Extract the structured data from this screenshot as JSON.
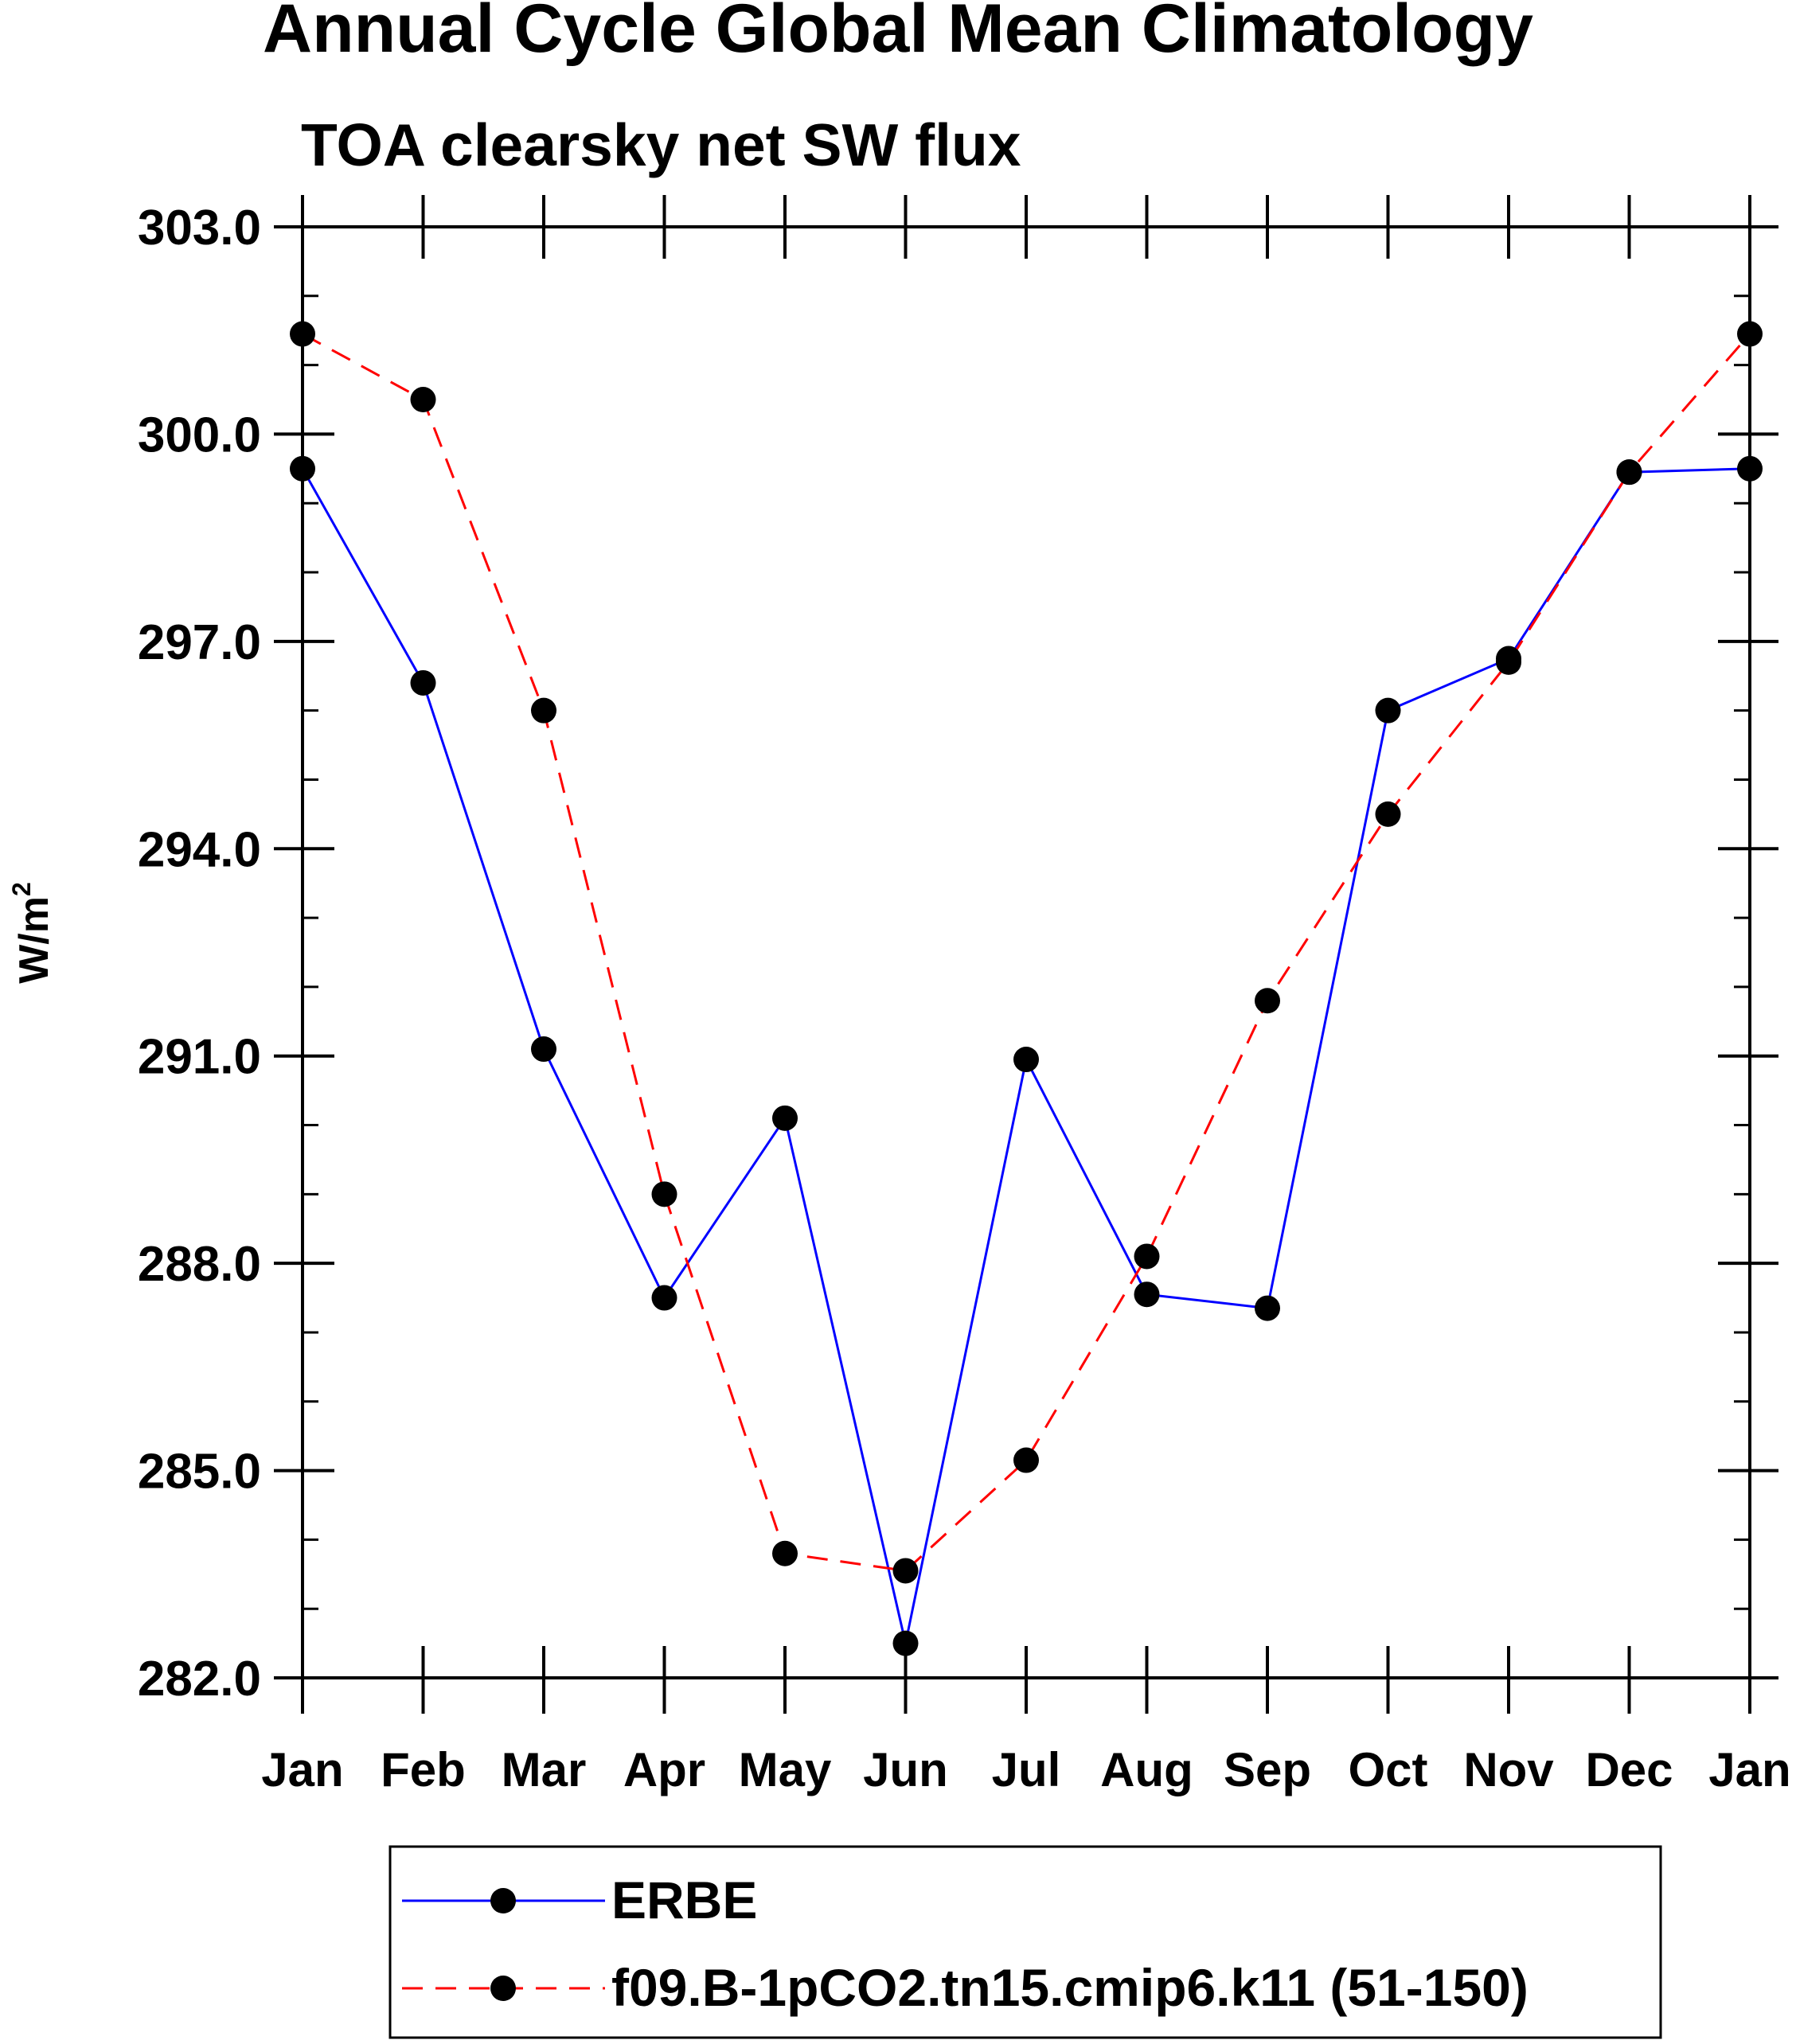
{
  "chart_data": {
    "type": "line",
    "title": "Annual Cycle Global Mean Climatology",
    "subtitle": "TOA clearsky net SW flux",
    "ylabel": "W/m",
    "ylabel_superscript": "2",
    "xlabel": "",
    "categories": [
      "Jan",
      "Feb",
      "Mar",
      "Apr",
      "May",
      "Jun",
      "Jul",
      "Aug",
      "Sep",
      "Oct",
      "Nov",
      "Dec",
      "Jan"
    ],
    "ylim": [
      282.0,
      303.0
    ],
    "yticks": [
      282.0,
      285.0,
      288.0,
      291.0,
      294.0,
      297.0,
      300.0,
      303.0
    ],
    "ytick_labels": [
      "282.0",
      "285.0",
      "288.0",
      "291.0",
      "294.0",
      "297.0",
      "300.0",
      "303.0"
    ],
    "y_minor_step": 1.0,
    "grid": false,
    "legend_position": "bottom",
    "series": [
      {
        "name": "ERBE",
        "color": "#0000ff",
        "dash": "solid",
        "marker": "filled-circle",
        "values": [
          299.5,
          296.4,
          291.1,
          287.5,
          290.1,
          282.5,
          290.95,
          287.55,
          287.35,
          296.0,
          296.75,
          299.45,
          299.5
        ]
      },
      {
        "name": "f09.B-1pCO2.tn15.cmip6.k11 (51-150)",
        "color": "#ff0000",
        "dash": "dashed",
        "marker": "filled-circle",
        "values": [
          301.45,
          300.5,
          296.0,
          289.0,
          283.8,
          283.55,
          285.15,
          288.1,
          291.8,
          294.5,
          296.7,
          299.45,
          301.45
        ]
      }
    ]
  }
}
